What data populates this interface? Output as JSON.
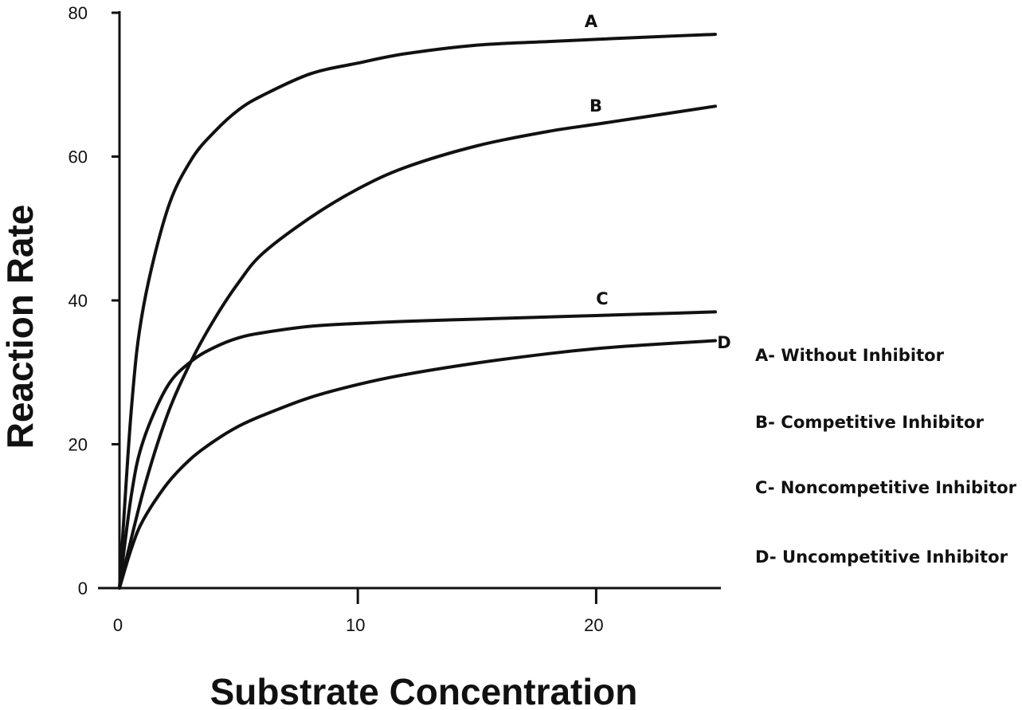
{
  "chart_data": {
    "type": "line",
    "title": "",
    "xlabel": "Substrate Concentration",
    "ylabel": "Reaction Rate",
    "xlim": [
      0,
      25
    ],
    "ylim": [
      0,
      80
    ],
    "x_ticks": [
      0,
      10,
      20
    ],
    "y_ticks": [
      0,
      20,
      40,
      60,
      80
    ],
    "grid": false,
    "legend_position": "right",
    "series": [
      {
        "name": "A",
        "x": [
          0,
          0.5,
          1,
          2,
          3,
          4,
          5,
          6,
          8,
          10,
          12,
          15,
          18,
          20,
          22,
          25
        ],
        "y": [
          0,
          25,
          39,
          52.5,
          59.5,
          63.5,
          66.5,
          68.5,
          71.5,
          73,
          74.3,
          75.5,
          76,
          76.3,
          76.6,
          77
        ]
      },
      {
        "name": "B",
        "x": [
          0,
          1,
          2,
          3,
          4,
          5,
          6,
          8,
          10,
          12,
          15,
          18,
          20,
          22,
          25
        ],
        "y": [
          0,
          13.5,
          24,
          31.5,
          37.5,
          42.5,
          46.5,
          51.5,
          55.5,
          58.5,
          61.5,
          63.5,
          64.5,
          65.5,
          67
        ]
      },
      {
        "name": "C",
        "x": [
          0,
          0.5,
          1,
          2,
          3,
          4,
          5,
          6,
          8,
          10,
          12,
          15,
          18,
          20,
          22,
          25
        ],
        "y": [
          0,
          13,
          20.5,
          28,
          31.5,
          33.5,
          34.8,
          35.5,
          36.4,
          36.8,
          37.1,
          37.4,
          37.7,
          37.9,
          38.1,
          38.4
        ]
      },
      {
        "name": "D",
        "x": [
          0,
          0.5,
          1,
          2,
          3,
          4,
          5,
          6,
          8,
          10,
          12,
          15,
          18,
          20,
          22,
          25
        ],
        "y": [
          0,
          5.5,
          9.5,
          14.5,
          18,
          20.5,
          22.5,
          24,
          26.5,
          28.3,
          29.7,
          31.3,
          32.6,
          33.3,
          33.8,
          34.4
        ]
      }
    ],
    "legend": [
      "A- Without Inhibitor",
      "B- Competitive Inhibitor",
      "C- Noncompetitive Inhibitor",
      "D- Uncompetitive Inhibitor"
    ],
    "colors": {
      "line": "#111111",
      "background": "#ffffff"
    }
  }
}
